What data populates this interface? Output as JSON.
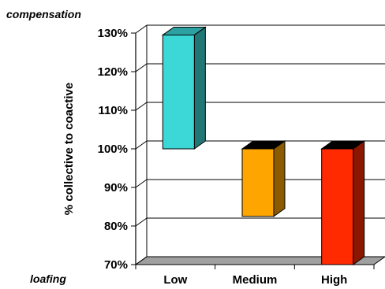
{
  "chart_data": {
    "type": "bar",
    "style": "3d-floating-bars-from-baseline",
    "title": "",
    "xlabel": "",
    "ylabel": "% collective to coactive",
    "baseline": 100,
    "ylim": [
      70,
      130
    ],
    "yticks": [
      70,
      80,
      90,
      100,
      110,
      120,
      130
    ],
    "ytick_labels": [
      "70%",
      "80%",
      "90%",
      "100%",
      "110%",
      "120%",
      "130%"
    ],
    "grid": true,
    "categories": [
      "Low",
      "Medium",
      "High"
    ],
    "values": [
      129.5,
      82.5,
      70
    ],
    "colors": [
      "#3CD7D7",
      "#FFA500",
      "#FF2A00"
    ],
    "annotations": {
      "top": "compensation",
      "bottom": "loafing"
    }
  }
}
